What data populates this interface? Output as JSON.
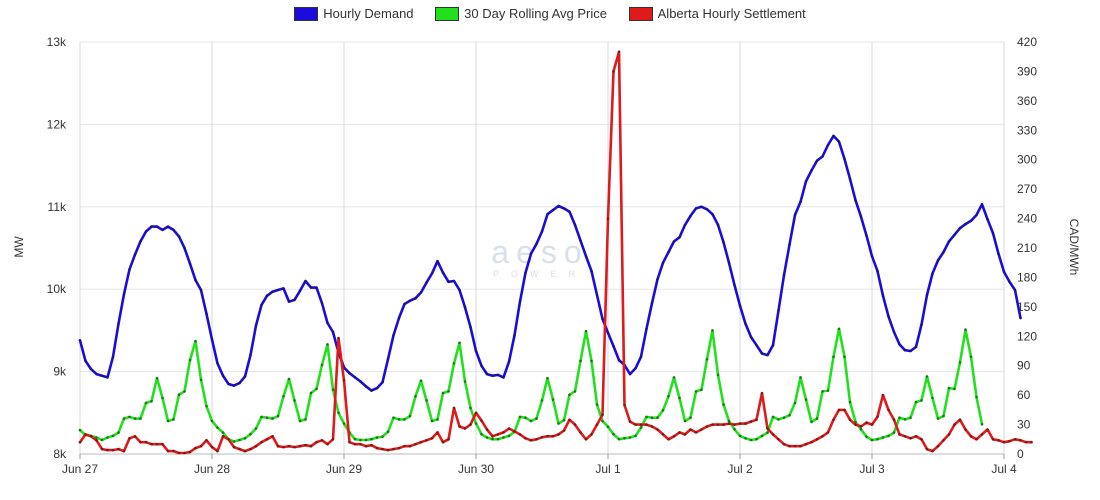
{
  "chart_data": {
    "type": "line",
    "legend_placement": "top-center",
    "grid": true,
    "x_tick_labels": [
      "Jun 27",
      "Jun 28",
      "Jun 29",
      "Jun 30",
      "Jul 1",
      "Jul 2",
      "Jul 3",
      "Jul 4"
    ],
    "y_left": {
      "label": "MW",
      "range": [
        8000,
        13000
      ],
      "tick_labels": [
        "8k",
        "9k",
        "10k",
        "11k",
        "12k",
        "13k"
      ]
    },
    "y_right": {
      "label": "CAD/MWh",
      "range": [
        0,
        420
      ],
      "tick_labels": [
        "0",
        "30",
        "60",
        "90",
        "120",
        "150",
        "180",
        "210",
        "240",
        "270",
        "300",
        "330",
        "360",
        "390",
        "420"
      ]
    },
    "watermark": {
      "main": "aeso",
      "sub": "POWER"
    },
    "series": [
      {
        "name": "Hourly Demand",
        "color": "#1a0ddb",
        "axis": "left",
        "x_start": "Jun 27 00:00",
        "x_step_hours": 1,
        "values": [
          9380,
          9130,
          9030,
          8970,
          8950,
          8930,
          9180,
          9580,
          9940,
          10240,
          10420,
          10580,
          10700,
          10760,
          10760,
          10720,
          10760,
          10720,
          10640,
          10500,
          10310,
          10110,
          9990,
          9700,
          9390,
          9100,
          8950,
          8850,
          8830,
          8860,
          8940,
          9200,
          9560,
          9810,
          9920,
          9970,
          9990,
          10010,
          9850,
          9870,
          9980,
          10100,
          10020,
          10020,
          9830,
          9590,
          9480,
          9230,
          9050,
          8980,
          8930,
          8880,
          8820,
          8770,
          8800,
          8870,
          9150,
          9440,
          9650,
          9820,
          9860,
          9890,
          9960,
          10080,
          10190,
          10340,
          10200,
          10090,
          10100,
          9990,
          9780,
          9540,
          9250,
          9070,
          8970,
          8950,
          8960,
          8930,
          9120,
          9440,
          9850,
          10200,
          10430,
          10550,
          10700,
          10910,
          10960,
          11010,
          10980,
          10940,
          10780,
          10590,
          10400,
          10220,
          9930,
          9640,
          9470,
          9310,
          9140,
          9080,
          8970,
          9040,
          9180,
          9520,
          9830,
          10120,
          10320,
          10450,
          10580,
          10630,
          10780,
          10890,
          10980,
          11000,
          10970,
          10910,
          10780,
          10570,
          10320,
          10050,
          9800,
          9580,
          9420,
          9320,
          9220,
          9200,
          9320,
          9740,
          10170,
          10540,
          10900,
          11060,
          11310,
          11440,
          11560,
          11610,
          11750,
          11860,
          11790,
          11580,
          11340,
          11080,
          10880,
          10650,
          10400,
          10220,
          9920,
          9670,
          9480,
          9330,
          9260,
          9250,
          9300,
          9570,
          9930,
          10190,
          10350,
          10450,
          10580,
          10660,
          10740,
          10790,
          10830,
          10900,
          11030,
          10850,
          10680,
          10430,
          10210,
          10090,
          9990,
          9650
        ]
      },
      {
        "name": "30 Day Rolling Avg Price",
        "color": "#22e01e",
        "axis": "left",
        "x_start": "Jun 27 00:00",
        "x_step_hours": 1,
        "values": [
          8290,
          8230,
          8220,
          8200,
          8170,
          8200,
          8220,
          8260,
          8430,
          8450,
          8430,
          8430,
          8620,
          8640,
          8920,
          8680,
          8400,
          8420,
          8720,
          8760,
          9140,
          9370,
          8900,
          8580,
          8400,
          8320,
          8260,
          8180,
          8150,
          8170,
          8190,
          8240,
          8310,
          8450,
          8440,
          8430,
          8460,
          8700,
          8910,
          8650,
          8400,
          8420,
          8740,
          8790,
          9080,
          9330,
          8780,
          8500,
          8370,
          8260,
          8180,
          8170,
          8170,
          8180,
          8200,
          8210,
          8270,
          8440,
          8420,
          8420,
          8460,
          8700,
          8890,
          8650,
          8400,
          8420,
          8740,
          8760,
          9100,
          9350,
          8880,
          8560,
          8370,
          8240,
          8200,
          8180,
          8180,
          8200,
          8220,
          8270,
          8450,
          8440,
          8400,
          8430,
          8650,
          8920,
          8660,
          8370,
          8410,
          8720,
          8760,
          9130,
          9490,
          9130,
          8600,
          8400,
          8330,
          8240,
          8180,
          8190,
          8200,
          8220,
          8320,
          8450,
          8440,
          8440,
          8530,
          8700,
          8930,
          8680,
          8400,
          8440,
          8760,
          8780,
          9150,
          9500,
          8960,
          8600,
          8400,
          8300,
          8220,
          8190,
          8170,
          8180,
          8220,
          8260,
          8450,
          8420,
          8440,
          8470,
          8620,
          8930,
          8660,
          8390,
          8430,
          8760,
          8770,
          9180,
          9520,
          9180,
          8630,
          8390,
          8300,
          8210,
          8170,
          8180,
          8200,
          8220,
          8260,
          8440,
          8420,
          8440,
          8630,
          8650,
          8940,
          8680,
          8430,
          8460,
          8800,
          8790,
          9110,
          9510,
          9180,
          8690,
          8360
        ]
      },
      {
        "name": "Alberta Hourly Settlement",
        "color": "#e01a1a",
        "axis": "right",
        "x_start": "Jun 27 00:00",
        "x_step_hours": 1,
        "values": [
          12,
          20,
          18,
          14,
          5,
          4,
          4,
          5,
          3,
          16,
          18,
          12,
          12,
          10,
          10,
          10,
          3,
          3,
          1,
          1,
          2,
          6,
          8,
          14,
          7,
          3,
          18,
          15,
          7,
          5,
          3,
          5,
          8,
          12,
          15,
          18,
          8,
          7,
          8,
          7,
          8,
          9,
          8,
          12,
          14,
          10,
          15,
          118,
          75,
          12,
          10,
          10,
          8,
          9,
          6,
          5,
          4,
          5,
          6,
          8,
          8,
          10,
          12,
          14,
          16,
          22,
          12,
          15,
          47,
          28,
          26,
          30,
          42,
          34,
          25,
          18,
          20,
          22,
          26,
          23,
          20,
          16,
          14,
          15,
          17,
          18,
          18,
          20,
          24,
          35,
          30,
          22,
          15,
          20,
          30,
          40,
          240,
          390,
          410,
          50,
          33,
          30,
          30,
          30,
          28,
          25,
          20,
          15,
          18,
          22,
          20,
          25,
          22,
          25,
          28,
          30,
          30,
          30,
          31,
          30,
          31,
          31,
          33,
          35,
          62,
          26,
          20,
          15,
          10,
          8,
          8,
          8,
          10,
          12,
          15,
          18,
          22,
          35,
          45,
          45,
          35,
          30,
          28,
          32,
          30,
          38,
          60,
          45,
          35,
          20,
          18,
          16,
          18,
          15,
          5,
          3,
          8,
          14,
          20,
          30,
          35,
          25,
          18,
          15,
          20,
          25,
          15,
          14,
          12,
          13,
          15,
          14,
          12,
          12
        ]
      }
    ]
  }
}
